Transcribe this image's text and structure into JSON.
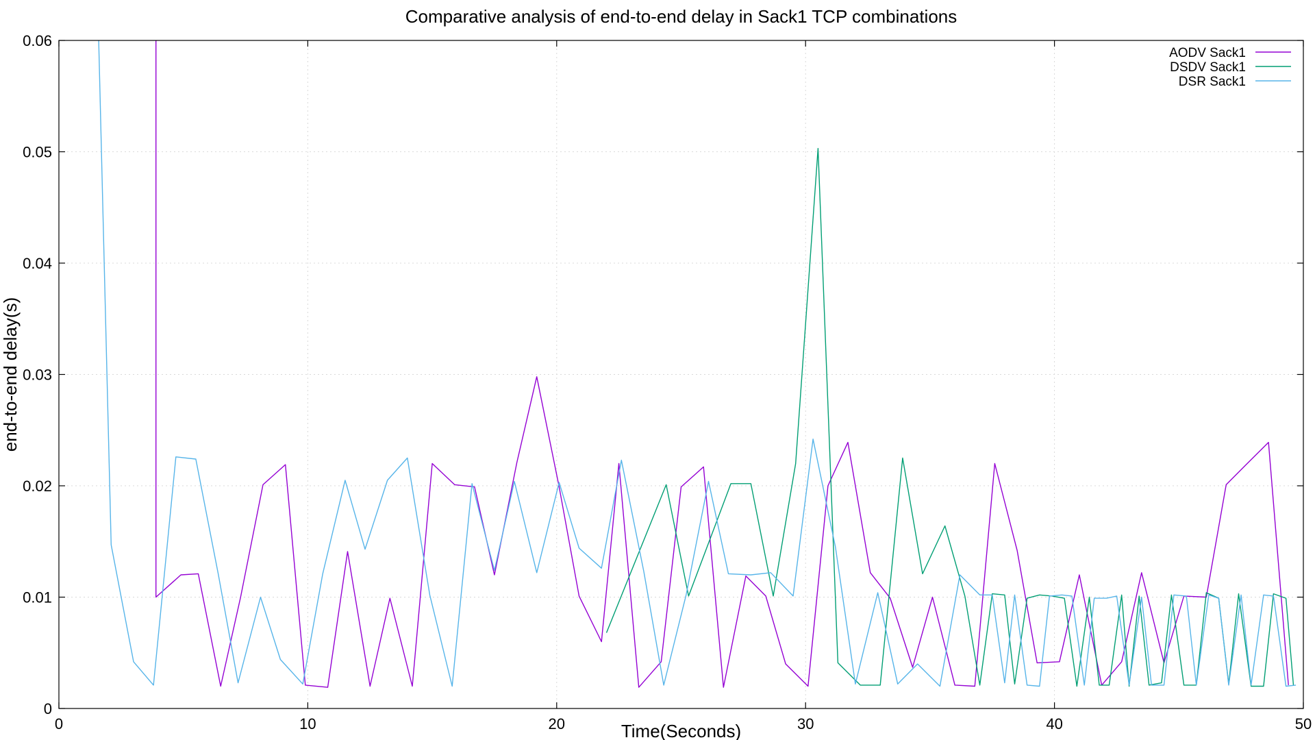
{
  "chart_data": {
    "type": "line",
    "title": "Comparative analysis of end-to-end delay in Sack1 TCP combinations",
    "xlabel": "Time(Seconds)",
    "ylabel": "end-to-end delay(s)",
    "xlim": [
      0,
      50
    ],
    "ylim": [
      0,
      0.06
    ],
    "xticks": [
      0,
      10,
      20,
      30,
      40,
      50
    ],
    "xtick_labels": [
      "0",
      "10",
      "20",
      "30",
      "40",
      "50"
    ],
    "yticks": [
      0,
      0.01,
      0.02,
      0.03,
      0.04,
      0.05,
      0.06
    ],
    "ytick_labels": [
      "0",
      "0.01",
      "0.02",
      "0.03",
      "0.04",
      "0.05",
      "0.06"
    ],
    "grid": true,
    "legend_position": "top-right",
    "series": [
      {
        "name": "AODV Sack1",
        "color": "#9400d3",
        "points": [
          [
            3.9,
            0.06
          ],
          [
            3.9,
            0.01
          ],
          [
            4.9,
            0.012
          ],
          [
            5.6,
            0.0121
          ],
          [
            6.5,
            0.002
          ],
          [
            7.3,
            0.01
          ],
          [
            8.2,
            0.0201
          ],
          [
            9.1,
            0.0219
          ],
          [
            9.9,
            0.0021
          ],
          [
            10.8,
            0.0019
          ],
          [
            11.6,
            0.0141
          ],
          [
            12.5,
            0.002
          ],
          [
            13.3,
            0.0099
          ],
          [
            14.2,
            0.002
          ],
          [
            15.0,
            0.022
          ],
          [
            15.9,
            0.0201
          ],
          [
            16.7,
            0.0199
          ],
          [
            17.5,
            0.012
          ],
          [
            18.4,
            0.0221
          ],
          [
            19.2,
            0.0298
          ],
          [
            20.1,
            0.0199
          ],
          [
            20.9,
            0.0101
          ],
          [
            21.8,
            0.006
          ],
          [
            22.5,
            0.022
          ],
          [
            23.3,
            0.0019
          ],
          [
            24.2,
            0.0042
          ],
          [
            25.0,
            0.0199
          ],
          [
            25.9,
            0.0217
          ],
          [
            26.7,
            0.0019
          ],
          [
            27.6,
            0.0119
          ],
          [
            28.4,
            0.0101
          ],
          [
            29.2,
            0.004
          ],
          [
            30.1,
            0.002
          ],
          [
            30.9,
            0.02
          ],
          [
            31.7,
            0.0239
          ],
          [
            32.6,
            0.0122
          ],
          [
            33.4,
            0.0099
          ],
          [
            34.3,
            0.0037
          ],
          [
            35.1,
            0.01
          ],
          [
            36.0,
            0.0021
          ],
          [
            36.8,
            0.002
          ],
          [
            37.6,
            0.022
          ],
          [
            38.5,
            0.0142
          ],
          [
            39.3,
            0.0041
          ],
          [
            40.2,
            0.0042
          ],
          [
            41.0,
            0.012
          ],
          [
            41.9,
            0.0021
          ],
          [
            42.7,
            0.0042
          ],
          [
            43.5,
            0.0122
          ],
          [
            44.4,
            0.0041
          ],
          [
            45.2,
            0.0101
          ],
          [
            46.1,
            0.01
          ],
          [
            46.9,
            0.0201
          ],
          [
            47.7,
            0.0219
          ],
          [
            48.6,
            0.0239
          ],
          [
            49.4,
            0.0021
          ]
        ]
      },
      {
        "name": "DSDV Sack1",
        "color": "#009e73",
        "points": [
          [
            22.0,
            0.0068
          ],
          [
            24.4,
            0.0201
          ],
          [
            25.3,
            0.0101
          ],
          [
            27.0,
            0.0202
          ],
          [
            27.8,
            0.0202
          ],
          [
            28.7,
            0.0101
          ],
          [
            29.6,
            0.022
          ],
          [
            30.5,
            0.0503
          ],
          [
            31.3,
            0.0041
          ],
          [
            32.2,
            0.0021
          ],
          [
            33.0,
            0.0021
          ],
          [
            33.9,
            0.0225
          ],
          [
            34.7,
            0.0121
          ],
          [
            35.6,
            0.0164
          ],
          [
            36.4,
            0.0101
          ],
          [
            37.0,
            0.0021
          ],
          [
            37.5,
            0.0103
          ],
          [
            38.0,
            0.0102
          ],
          [
            38.4,
            0.0022
          ],
          [
            38.9,
            0.0099
          ],
          [
            39.4,
            0.0102
          ],
          [
            39.9,
            0.0101
          ],
          [
            40.4,
            0.0099
          ],
          [
            40.9,
            0.002
          ],
          [
            41.4,
            0.01
          ],
          [
            41.8,
            0.0021
          ],
          [
            42.2,
            0.0021
          ],
          [
            42.7,
            0.0102
          ],
          [
            43.0,
            0.002
          ],
          [
            43.4,
            0.0101
          ],
          [
            43.8,
            0.0021
          ],
          [
            44.3,
            0.0023
          ],
          [
            44.7,
            0.0102
          ],
          [
            45.2,
            0.0021
          ],
          [
            45.7,
            0.0021
          ],
          [
            46.1,
            0.0104
          ],
          [
            46.6,
            0.0099
          ],
          [
            47.0,
            0.0022
          ],
          [
            47.4,
            0.0103
          ],
          [
            47.9,
            0.002
          ],
          [
            48.4,
            0.002
          ],
          [
            48.8,
            0.0103
          ],
          [
            49.3,
            0.0099
          ],
          [
            49.6,
            0.0021
          ]
        ]
      },
      {
        "name": "DSR Sack1",
        "color": "#56b4e9",
        "points": [
          [
            1.6,
            0.06
          ],
          [
            2.1,
            0.0147
          ],
          [
            3.0,
            0.0042
          ],
          [
            3.8,
            0.0021
          ],
          [
            4.7,
            0.0226
          ],
          [
            5.5,
            0.0224
          ],
          [
            6.4,
            0.0121
          ],
          [
            7.2,
            0.0023
          ],
          [
            8.1,
            0.01
          ],
          [
            8.9,
            0.0044
          ],
          [
            9.8,
            0.0022
          ],
          [
            10.6,
            0.0121
          ],
          [
            11.5,
            0.0205
          ],
          [
            12.3,
            0.0143
          ],
          [
            13.2,
            0.0205
          ],
          [
            14.0,
            0.0225
          ],
          [
            14.9,
            0.0102
          ],
          [
            15.8,
            0.002
          ],
          [
            16.6,
            0.0202
          ],
          [
            17.5,
            0.0124
          ],
          [
            18.3,
            0.0204
          ],
          [
            19.2,
            0.0122
          ],
          [
            20.1,
            0.0203
          ],
          [
            20.9,
            0.0144
          ],
          [
            21.8,
            0.0126
          ],
          [
            22.6,
            0.0223
          ],
          [
            23.5,
            0.0123
          ],
          [
            24.3,
            0.0021
          ],
          [
            25.2,
            0.0102
          ],
          [
            26.1,
            0.0204
          ],
          [
            26.9,
            0.0121
          ],
          [
            27.8,
            0.012
          ],
          [
            28.6,
            0.0122
          ],
          [
            29.5,
            0.0101
          ],
          [
            30.3,
            0.0242
          ],
          [
            31.2,
            0.0145
          ],
          [
            32.0,
            0.0022
          ],
          [
            32.9,
            0.0104
          ],
          [
            33.7,
            0.0022
          ],
          [
            34.5,
            0.004
          ],
          [
            35.4,
            0.002
          ],
          [
            36.2,
            0.012
          ],
          [
            37.0,
            0.0102
          ],
          [
            37.5,
            0.0102
          ],
          [
            38.0,
            0.0023
          ],
          [
            38.4,
            0.0102
          ],
          [
            38.9,
            0.0021
          ],
          [
            39.4,
            0.002
          ],
          [
            39.8,
            0.0101
          ],
          [
            40.3,
            0.0102
          ],
          [
            40.7,
            0.0101
          ],
          [
            41.2,
            0.0021
          ],
          [
            41.6,
            0.0099
          ],
          [
            42.1,
            0.0099
          ],
          [
            42.5,
            0.0101
          ],
          [
            43.0,
            0.0021
          ],
          [
            43.5,
            0.01
          ],
          [
            43.9,
            0.0021
          ],
          [
            44.4,
            0.0021
          ],
          [
            44.8,
            0.0102
          ],
          [
            45.3,
            0.0101
          ],
          [
            45.7,
            0.0021
          ],
          [
            46.2,
            0.0102
          ],
          [
            46.6,
            0.0099
          ],
          [
            47.0,
            0.0021
          ],
          [
            47.5,
            0.0102
          ],
          [
            47.9,
            0.0021
          ],
          [
            48.4,
            0.0102
          ],
          [
            48.8,
            0.0101
          ],
          [
            49.3,
            0.002
          ],
          [
            49.7,
            0.0021
          ]
        ]
      }
    ]
  }
}
